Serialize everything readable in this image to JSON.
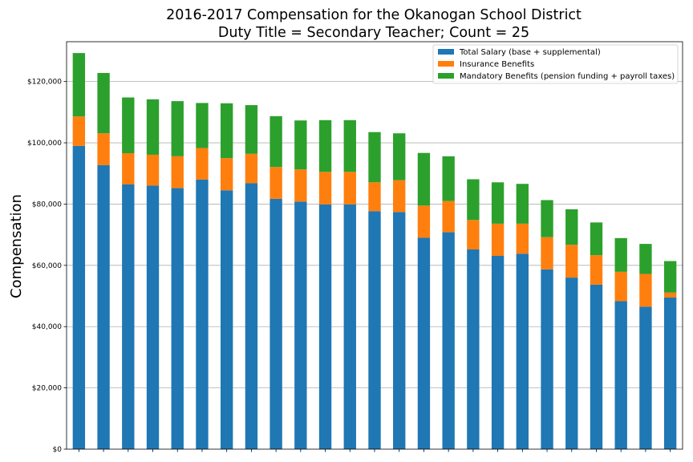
{
  "chart_data": {
    "type": "bar",
    "stacked": true,
    "title": "2016-2017 Compensation for the Okanogan School District",
    "subtitle": "Duty Title = Secondary Teacher; Count = 25",
    "xlabel": "",
    "ylabel": "Compensation",
    "ylim": [
      0,
      133000
    ],
    "yticks": [
      0,
      20000,
      40000,
      60000,
      80000,
      100000,
      120000
    ],
    "ytick_labels": [
      "$0",
      "$20,000",
      "$40,000",
      "$60,000",
      "$80,000",
      "$100,000",
      "$120,000"
    ],
    "grid": "horizontal",
    "legend_position": "top-right",
    "series": [
      {
        "name": "Total Salary (base + supplemental)",
        "color": "#1f77b4",
        "values": [
          99000,
          92700,
          86400,
          86000,
          85200,
          88000,
          84500,
          86800,
          81700,
          80800,
          79900,
          79900,
          77700,
          77400,
          69000,
          70800,
          65200,
          63100,
          63800,
          58700,
          56000,
          53700,
          48300,
          46500,
          49500
        ]
      },
      {
        "name": "Insurance Benefits",
        "color": "#ff7f0e",
        "values": [
          9600,
          10400,
          10200,
          10100,
          10400,
          10300,
          10500,
          9600,
          10400,
          10500,
          10600,
          10600,
          9400,
          10400,
          10500,
          10200,
          9600,
          10500,
          9800,
          10500,
          10700,
          9600,
          9600,
          10700,
          1600
        ]
      },
      {
        "name": "Mandatory Benefits (pension funding + payroll taxes)",
        "color": "#2ca02c",
        "values": [
          20700,
          19700,
          18200,
          18100,
          18000,
          14700,
          17900,
          15900,
          16600,
          16000,
          16900,
          16900,
          16400,
          15300,
          17200,
          14600,
          13300,
          13500,
          13000,
          12100,
          11600,
          10700,
          11000,
          9800,
          10300
        ]
      }
    ]
  }
}
